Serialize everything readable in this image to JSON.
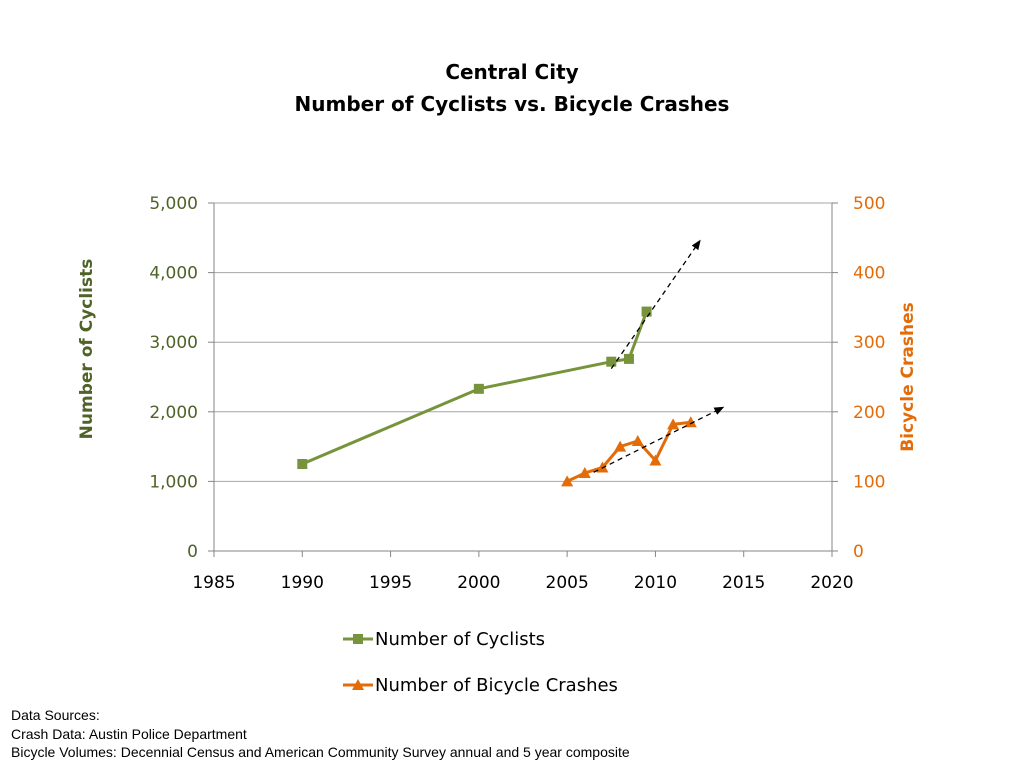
{
  "chart_data": {
    "type": "line",
    "title": "Central City",
    "subtitle": "Number of Cyclists vs. Bicycle Crashes",
    "x_ticks": [
      "1985",
      "1990",
      "1995",
      "2000",
      "2005",
      "2010",
      "2015",
      "2020"
    ],
    "xlim": [
      1985,
      2020
    ],
    "y_left": {
      "label": "Number of Cyclists",
      "ylim": [
        0,
        5000
      ],
      "ticks": [
        "0",
        "1,000",
        "2,000",
        "3,000",
        "4,000",
        "5,000"
      ],
      "color": "#4f6228"
    },
    "y_right": {
      "label": "Bicycle Crashes",
      "ylim": [
        0,
        500
      ],
      "ticks": [
        "0",
        "100",
        "200",
        "300",
        "400",
        "500"
      ],
      "color": "#e36c09"
    },
    "grid": true,
    "legend_placement": "bottom",
    "series": [
      {
        "name": "Number of Cyclists",
        "axis": "left",
        "marker": "square",
        "color": "#77933c",
        "x": [
          1990,
          2000,
          2007.5,
          2008.5,
          2009.5
        ],
        "y": [
          1250,
          2330,
          2720,
          2760,
          3440
        ]
      },
      {
        "name": "Number of Bicycle Crashes",
        "axis": "right",
        "marker": "triangle",
        "color": "#e36c09",
        "x": [
          2005,
          2006,
          2007,
          2008,
          2009,
          2010,
          2011,
          2012
        ],
        "y": [
          100,
          112,
          120,
          150,
          158,
          130,
          182,
          185
        ]
      }
    ],
    "trendlines": [
      {
        "axis": "left",
        "style": "dashed-arrow",
        "color": "#000000",
        "x": [
          2007.5,
          2012.5
        ],
        "y": [
          2620,
          4450
        ]
      },
      {
        "axis": "right",
        "style": "dashed-arrow",
        "color": "#000000",
        "x": [
          2006.5,
          2013.8
        ],
        "y": [
          113,
          206
        ]
      }
    ]
  },
  "sources": {
    "heading": "Data Sources:",
    "crash": "Crash Data: Austin Police Department",
    "volumes": "Bicycle Volumes: Decennial Census and American Community Survey annual and 5 year composite"
  }
}
